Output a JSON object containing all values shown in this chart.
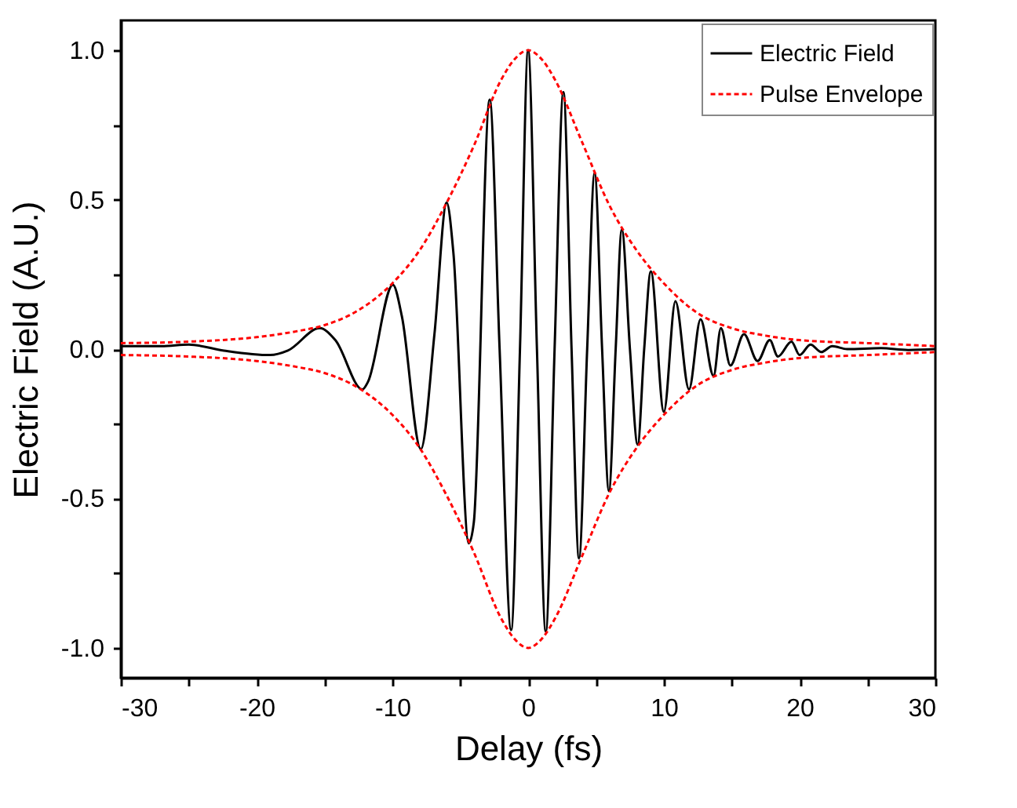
{
  "chart_data": {
    "type": "line",
    "xlabel": "Delay (fs)",
    "ylabel": "Electric Field (A.U.)",
    "xlim": [
      -30,
      30
    ],
    "ylim": [
      -1.1,
      1.1
    ],
    "xticks": [
      -30,
      {
        "value": -25,
        "label": null
      },
      -20,
      {
        "value": -15,
        "label": null
      },
      -10,
      {
        "value": -5,
        "label": null
      },
      0,
      {
        "value": 5,
        "label": null
      },
      10,
      {
        "value": 15,
        "label": null
      },
      20,
      {
        "value": 25,
        "label": null
      },
      30
    ],
    "yticks": [
      {
        "value": -1,
        "label": "-1.0"
      },
      {
        "value": -0.75,
        "label": null
      },
      {
        "value": -0.5,
        "label": "-0.5"
      },
      {
        "value": -0.25,
        "label": null
      },
      {
        "value": 0,
        "label": "0.0"
      },
      {
        "value": 0.25,
        "label": null
      },
      {
        "value": 0.5,
        "label": "0.5"
      },
      {
        "value": 0.75,
        "label": null
      },
      {
        "value": 1,
        "label": "1.0"
      }
    ],
    "grid": false,
    "legend": "top right",
    "series": [
      {
        "name": "Electric Field",
        "color": "#000000",
        "line_style": "solid",
        "x": [
          -30,
          -27,
          -25,
          -22.4,
          -19,
          -17.7,
          -15.35,
          -14.2,
          -12.2,
          -11.8,
          -9.96,
          -9.3,
          -7.9,
          -6.9,
          -6.0,
          -5.5,
          -4.37,
          -4.0,
          -2.83,
          -2.1,
          -1.25,
          -0.6,
          0,
          0.65,
          1.3,
          1.95,
          2.6,
          3.2,
          3.75,
          4.35,
          4.9,
          5.45,
          5.95,
          6.45,
          6.9,
          7.5,
          8.07,
          8.55,
          9.04,
          10.0,
          10.85,
          11.85,
          12.7,
          13.66,
          14.2,
          14.9,
          15.9,
          16.9,
          17.8,
          18.4,
          19.4,
          20.0,
          20.8,
          21.6,
          22.4,
          23.5,
          26,
          28,
          30
        ],
        "values": [
          0.01,
          0.01,
          0.015,
          -0.005,
          -0.02,
          -0.005,
          0.07,
          0.03,
          -0.135,
          -0.11,
          0.215,
          0.11,
          -0.335,
          0.05,
          0.49,
          0.32,
          -0.65,
          -0.58,
          0.835,
          0.0,
          -0.94,
          0.0,
          1.0,
          0.0,
          -0.945,
          0.0,
          0.86,
          0.0,
          -0.7,
          0.0,
          0.59,
          0.0,
          -0.475,
          0.0,
          0.4,
          0.0,
          -0.32,
          0.0,
          0.26,
          -0.21,
          0.16,
          -0.135,
          0.1,
          -0.09,
          0.07,
          -0.055,
          0.05,
          -0.04,
          0.03,
          -0.025,
          0.025,
          -0.02,
          0.015,
          -0.01,
          0.01,
          0.0,
          0.003,
          -0.003,
          0.0
        ]
      },
      {
        "name": "Pulse Envelope",
        "color": "#ff0000",
        "line_style": "dotted",
        "x": [
          -30,
          -25,
          -20,
          -17,
          -15,
          -12.5,
          -10,
          -8,
          -6,
          -4,
          -2,
          -1,
          0,
          1,
          2,
          4,
          6,
          8,
          10,
          12.5,
          15,
          17.5,
          20,
          25,
          30
        ],
        "values": [
          0.02,
          0.025,
          0.04,
          0.06,
          0.08,
          0.13,
          0.22,
          0.33,
          0.49,
          0.68,
          0.9,
          0.97,
          1.0,
          0.97,
          0.9,
          0.69,
          0.48,
          0.33,
          0.22,
          0.12,
          0.07,
          0.045,
          0.03,
          0.02,
          0.01
        ]
      },
      {
        "color": "#ff0000",
        "line_style": "dotted",
        "x": [
          -30,
          -25,
          -20,
          -17,
          -15,
          -12.5,
          -10,
          -8,
          -6,
          -4,
          -2,
          -1,
          0,
          1,
          2,
          4,
          6,
          8,
          10,
          12.5,
          15,
          17.5,
          20,
          25,
          30
        ],
        "values": [
          -0.02,
          -0.025,
          -0.04,
          -0.06,
          -0.08,
          -0.13,
          -0.22,
          -0.33,
          -0.49,
          -0.68,
          -0.9,
          -0.97,
          -1.0,
          -0.97,
          -0.9,
          -0.69,
          -0.48,
          -0.33,
          -0.22,
          -0.12,
          -0.07,
          -0.045,
          -0.03,
          -0.02,
          -0.01
        ]
      }
    ]
  }
}
